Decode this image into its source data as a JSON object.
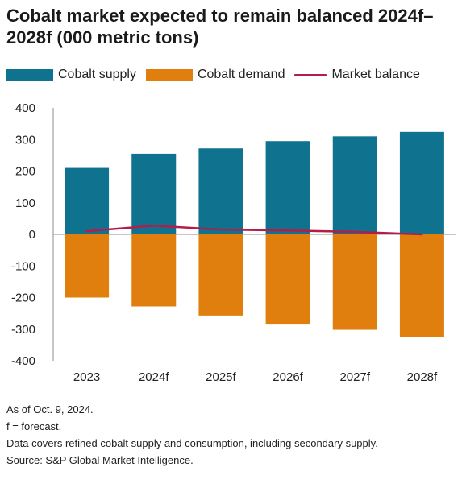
{
  "title": "Cobalt market expected to remain balanced 2024f–2028f (000 metric tons)",
  "legend": [
    {
      "label": "Cobalt supply",
      "color": "#0f7390",
      "kind": "box"
    },
    {
      "label": "Cobalt demand",
      "color": "#e07f0e",
      "kind": "box"
    },
    {
      "label": "Market balance",
      "color": "#b41c4a",
      "kind": "line"
    }
  ],
  "notes": {
    "as_of": "As of Oct. 9, 2024.",
    "forecast": "f = forecast.",
    "coverage": "Data covers refined cobalt supply and consumption, including secondary supply.",
    "source": "Source: S&P Global Market Intelligence."
  },
  "chart_data": {
    "type": "bar",
    "categories": [
      "2023",
      "2024f",
      "2025f",
      "2026f",
      "2027f",
      "2028f"
    ],
    "series": [
      {
        "name": "Cobalt supply",
        "type": "bar",
        "color": "#0f7390",
        "values": [
          210,
          255,
          272,
          295,
          310,
          324
        ]
      },
      {
        "name": "Cobalt demand",
        "type": "bar",
        "color": "#e07f0e",
        "values": [
          -200,
          -228,
          -257,
          -283,
          -302,
          -325
        ]
      },
      {
        "name": "Market balance",
        "type": "line",
        "color": "#b41c4a",
        "values": [
          10,
          27,
          15,
          12,
          8,
          0
        ]
      }
    ],
    "ylim": [
      -400,
      400
    ],
    "yticks": [
      400,
      300,
      200,
      100,
      0,
      -100,
      -200,
      -300,
      -400
    ],
    "xlabel": "",
    "ylabel": "",
    "grid": false,
    "legend_position": "top"
  }
}
